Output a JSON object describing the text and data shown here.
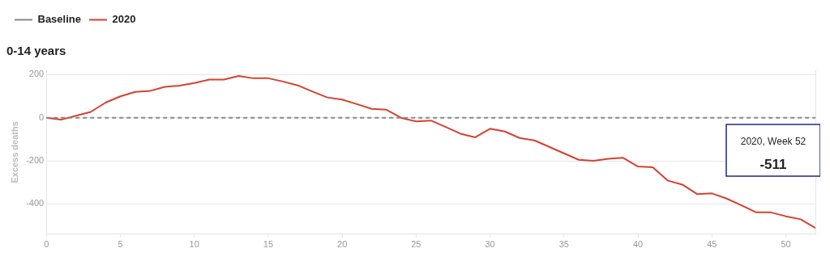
{
  "chart_data": {
    "type": "line",
    "title": "0-14 years",
    "ylabel": "Excess deaths",
    "x": [
      0,
      1,
      2,
      3,
      4,
      5,
      6,
      7,
      8,
      9,
      10,
      11,
      12,
      13,
      14,
      15,
      16,
      17,
      18,
      19,
      20,
      21,
      22,
      23,
      24,
      25,
      26,
      27,
      28,
      29,
      30,
      31,
      32,
      33,
      34,
      35,
      36,
      37,
      38,
      39,
      40,
      41,
      42,
      43,
      44,
      45,
      46,
      47,
      48,
      49,
      50,
      51,
      52
    ],
    "series": [
      {
        "name": "Baseline",
        "color": "#888888",
        "line_style": "dashed",
        "x": [
          0,
          52
        ],
        "values": [
          0,
          0
        ]
      },
      {
        "name": "2020",
        "color": "#d6412f",
        "line_style": "solid",
        "values": [
          0,
          -9,
          9,
          27,
          70,
          99,
          120,
          124,
          143,
          149,
          161,
          177,
          177,
          194,
          183,
          183,
          168,
          150,
          121,
          94,
          84,
          63,
          41,
          37,
          -1,
          -17,
          -13,
          -43,
          -74,
          -91,
          -51,
          -64,
          -94,
          -105,
          -135,
          -165,
          -195,
          -200,
          -190,
          -186,
          -226,
          -230,
          -291,
          -310,
          -354,
          -351,
          -375,
          -406,
          -439,
          -439,
          -457,
          -471,
          -511
        ]
      }
    ],
    "xlim": [
      0,
      52
    ],
    "xticks": [
      0,
      5,
      10,
      15,
      20,
      25,
      30,
      35,
      40,
      45,
      50
    ],
    "ylim": [
      -540,
      220
    ],
    "yticks": [
      -400,
      -200,
      0,
      200
    ],
    "grid": "y",
    "legend": "top left",
    "marker": "none",
    "annotations": [
      "2020, Week 52",
      "-511"
    ]
  }
}
